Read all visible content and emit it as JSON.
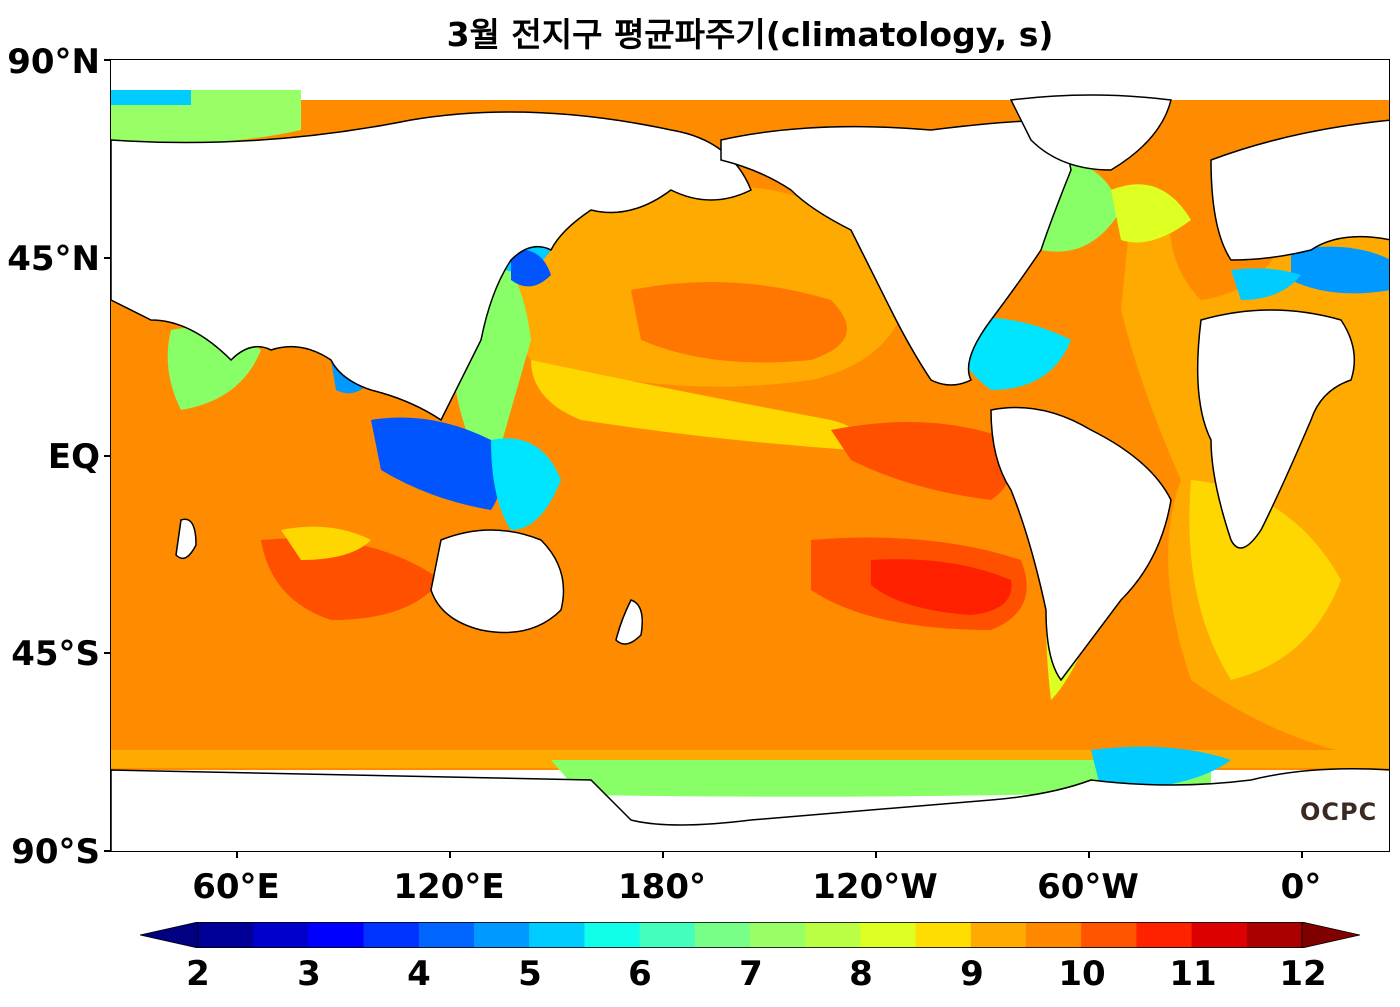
{
  "title": "3월 전지구 평균파주기(climatology, s)",
  "lat_labels": [
    "90°N",
    "45°N",
    "EQ",
    "45°S",
    "90°S"
  ],
  "lon_labels": [
    "60°E",
    "120°E",
    "180°",
    "120°W",
    "60°W",
    "0°"
  ],
  "colorbar": {
    "ticks": [
      "2",
      "3",
      "4",
      "5",
      "6",
      "7",
      "8",
      "9",
      "10",
      "11",
      "12"
    ],
    "colors": [
      "#000099",
      "#0000cc",
      "#0000ff",
      "#0033ff",
      "#0066ff",
      "#0099ff",
      "#00ccff",
      "#11ffe8",
      "#44ffbb",
      "#77ff88",
      "#99ff66",
      "#bbff44",
      "#ddff22",
      "#ffdd00",
      "#ffaa00",
      "#ff8800",
      "#ff5500",
      "#ff2200",
      "#dd0000",
      "#aa0000"
    ],
    "extend_min_color": "#000080",
    "extend_max_color": "#800000"
  },
  "logo_text": "OCPC",
  "ocean_colors": {
    "deep_orange": "#ff7700",
    "orange": "#ff8c00",
    "amber": "#ffaa00",
    "yellow": "#ffd700",
    "lime": "#ddff22",
    "green": "#88ff66",
    "cyan": "#00e5ff",
    "blue": "#0055ff",
    "red_orange": "#ff5000",
    "red": "#ff2000"
  },
  "land_color": "#ffffff"
}
